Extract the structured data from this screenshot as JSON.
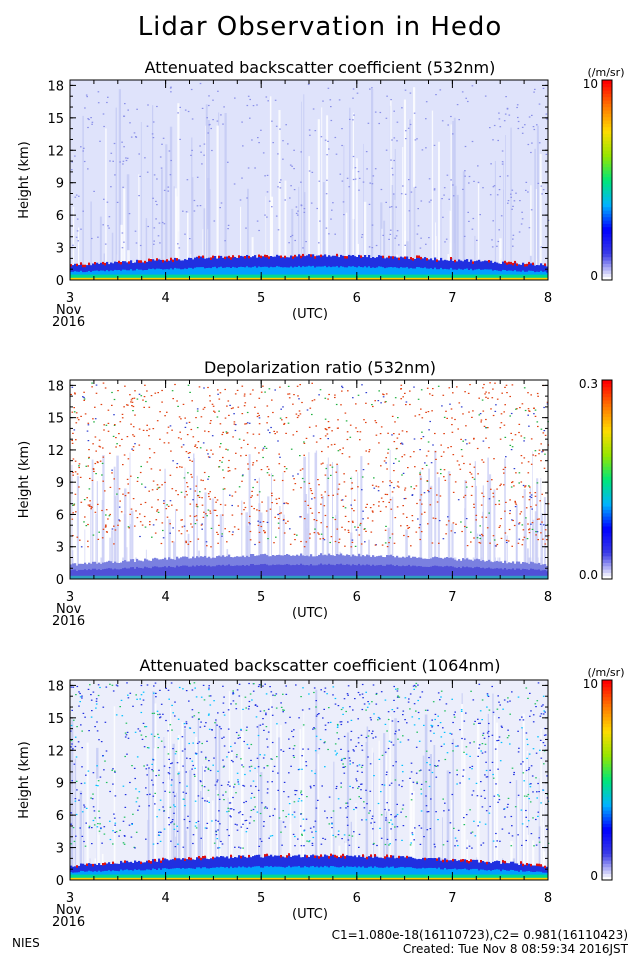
{
  "page_title": "Lidar Observation in Hedo",
  "footer": {
    "left": "NIES",
    "calibration": "C1=1.080e-18(16110723),C2= 0.981(16110423)",
    "created": "Created: Tue Nov  8 08:59:34 2016JST"
  },
  "chart_data": [
    {
      "type": "heatmap",
      "title": "Attenuated backscatter coefficient (532nm)",
      "ylabel": "Height (km)",
      "xlabel": "(UTC)",
      "x_ticks": [
        "3",
        "4",
        "5",
        "6",
        "7",
        "8"
      ],
      "x_sublabels": [
        "Nov",
        "2016"
      ],
      "y_ticks": [
        "0",
        "3",
        "6",
        "9",
        "12",
        "15",
        "18"
      ],
      "xlim": [
        3,
        8
      ],
      "ylim": [
        0,
        18.5
      ],
      "colorbar": {
        "unit": "(/m/sr)",
        "max_label": "10",
        "min_label": "0"
      }
    },
    {
      "type": "heatmap",
      "title": "Depolarization ratio (532nm)",
      "ylabel": "Height (km)",
      "xlabel": "(UTC)",
      "x_ticks": [
        "3",
        "4",
        "5",
        "6",
        "7",
        "8"
      ],
      "x_sublabels": [
        "Nov",
        "2016"
      ],
      "y_ticks": [
        "0",
        "3",
        "6",
        "9",
        "12",
        "15",
        "18"
      ],
      "xlim": [
        3,
        8
      ],
      "ylim": [
        0,
        18.5
      ],
      "colorbar": {
        "unit": "",
        "max_label": "0.3",
        "min_label": "0.0"
      }
    },
    {
      "type": "heatmap",
      "title": "Attenuated backscatter coefficient (1064nm)",
      "ylabel": "Height (km)",
      "xlabel": "(UTC)",
      "x_ticks": [
        "3",
        "4",
        "5",
        "6",
        "7",
        "8"
      ],
      "x_sublabels": [
        "Nov",
        "2016"
      ],
      "y_ticks": [
        "0",
        "3",
        "6",
        "9",
        "12",
        "15",
        "18"
      ],
      "xlim": [
        3,
        8
      ],
      "ylim": [
        0,
        18.5
      ],
      "colorbar": {
        "unit": "(/m/sr)",
        "max_label": "10",
        "min_label": "0"
      }
    }
  ]
}
